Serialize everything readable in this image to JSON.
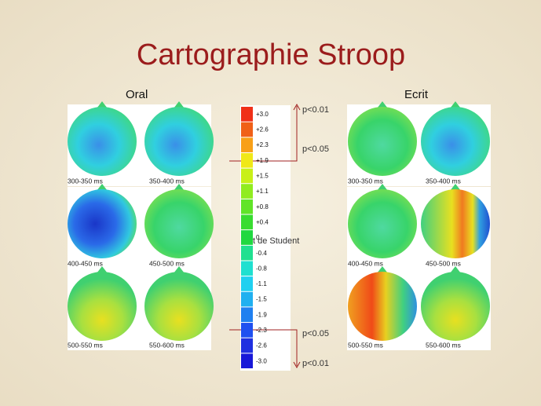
{
  "title": "Cartographie Stroop",
  "oral": {
    "heading": "Oral",
    "maps": [
      "300-350 ms",
      "350-400 ms",
      "400-450 ms",
      "450-500 ms",
      "500-550 ms",
      "550-600 ms"
    ]
  },
  "ecrit": {
    "heading": "Ecrit",
    "maps": [
      "300-350 ms",
      "350-400 ms",
      "400-450 ms",
      "450-500 ms",
      "500-550 ms",
      "550-600 ms"
    ]
  },
  "scale": {
    "label": "t de Student",
    "ticks": [
      "+3.0",
      "+2.6",
      "+2.3",
      "+1.9",
      "+1.5",
      "+1.1",
      "+0.8",
      "+0.4",
      "0",
      "-0.4",
      "-0.8",
      "-1.1",
      "-1.5",
      "-1.9",
      "-2.3",
      "-2.6",
      "-3.0"
    ],
    "annotations": [
      "p<0.01",
      "p<0.05",
      "p<0.05",
      "p<0.01"
    ]
  }
}
